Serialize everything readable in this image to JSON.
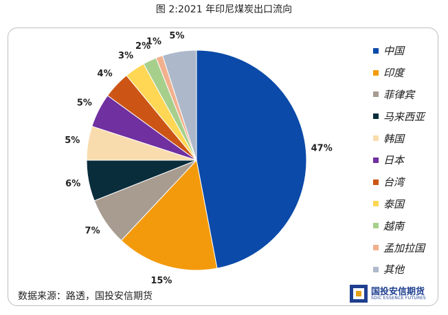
{
  "title": "图 2:2021 年印尼煤炭出口流向",
  "source": "数据来源：路透，国投安信期货",
  "logo": {
    "name": "国投安信期货",
    "subtitle": "SDIC ESSENCE FUTURES"
  },
  "chart_data": {
    "type": "pie",
    "title": "图 2:2021 年印尼煤炭出口流向",
    "start_angle_deg": 0,
    "direction": "clockwise",
    "legend_position": "right",
    "slices": [
      {
        "label": "中国",
        "value": 47,
        "display": "47%",
        "color": "#0b4aa8"
      },
      {
        "label": "印度",
        "value": 15,
        "display": "15%",
        "color": "#f39a0c"
      },
      {
        "label": "菲律宾",
        "value": 7,
        "display": "7%",
        "color": "#a89c90"
      },
      {
        "label": "马来西亚",
        "value": 6,
        "display": "6%",
        "color": "#0a2d3c"
      },
      {
        "label": "韩国",
        "value": 5,
        "display": "5%",
        "color": "#f9dcae"
      },
      {
        "label": "日本",
        "value": 5,
        "display": "5%",
        "color": "#7030a0"
      },
      {
        "label": "台湾",
        "value": 4,
        "display": "4%",
        "color": "#cc5515"
      },
      {
        "label": "泰国",
        "value": 3,
        "display": "3%",
        "color": "#ffd755"
      },
      {
        "label": "越南",
        "value": 2,
        "display": "2%",
        "color": "#a6cf8c"
      },
      {
        "label": "孟加拉国",
        "value": 1,
        "display": "1%",
        "color": "#f2b08e"
      },
      {
        "label": "其他",
        "value": 5,
        "display": "5%",
        "color": "#adb9ca"
      }
    ]
  }
}
